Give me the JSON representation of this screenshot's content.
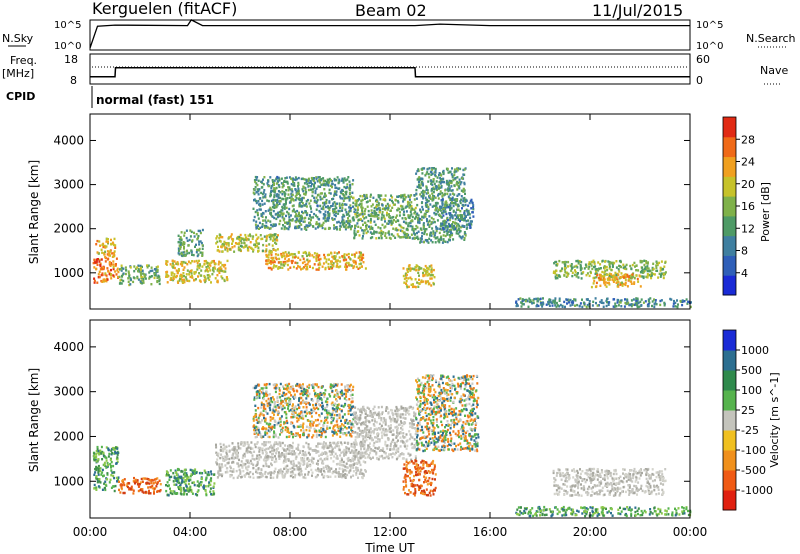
{
  "header": {
    "station": "Kerguelen (fitACF)",
    "beam": "Beam 02",
    "date": "11/Jul/2015"
  },
  "params": {
    "nsky_label": "N.Sky",
    "nsky_ticks": [
      "10^5",
      "10^0"
    ],
    "nsearch_label": "N.Search",
    "nsearch_ticks": [
      "10^5",
      "10^0"
    ],
    "freq_label": "Freq.",
    "freq_unit": "[MHz]",
    "freq_ticks": [
      "18",
      "8"
    ],
    "nave_label": "Nave",
    "nave_ticks": [
      "60",
      "0"
    ],
    "cpid_label": "CPID",
    "cpid_text": "normal (fast) 151"
  },
  "chart_data": [
    {
      "type": "line",
      "title": "",
      "series": [
        {
          "name": "N.Sky",
          "x_hours": [
            0,
            0.3,
            1,
            3.9,
            4.05,
            4.5,
            13,
            14,
            16,
            24
          ],
          "values_log": [
            0,
            4.2,
            4.4,
            4.3,
            5.4,
            4.3,
            4.3,
            4.6,
            4.3,
            4.3
          ]
        },
        {
          "name": "Freq.",
          "x_hours": [
            0,
            1,
            1.02,
            13,
            13.02,
            24
          ],
          "values": [
            10,
            10,
            13.5,
            13.5,
            10,
            10
          ]
        },
        {
          "name": "Nave",
          "x_hours": [
            0,
            24
          ],
          "values": [
            20,
            20
          ]
        }
      ]
    },
    {
      "type": "heatmap",
      "title": "Power",
      "xlabel": "Time UT",
      "ylabel": "Slant Range [km]",
      "colorbar_label": "Power [dB]",
      "colorbar_ticks": [
        "4",
        "8",
        "12",
        "16",
        "20",
        "24",
        "28"
      ],
      "colorbar_range": [
        0,
        32
      ],
      "x_ticks": [
        "00:00",
        "04:00",
        "08:00",
        "12:00",
        "16:00",
        "20:00",
        "00:00"
      ],
      "y_ticks": [
        "1000",
        "2000",
        "3000",
        "4000"
      ],
      "xlim_hours": [
        0,
        24
      ],
      "ylim_km": [
        180,
        4600
      ],
      "regions": [
        {
          "t0": 0.1,
          "t1": 1.1,
          "r0": 800,
          "r1": 1400,
          "v": 26
        },
        {
          "t0": 0.2,
          "t1": 1.0,
          "r0": 1400,
          "r1": 1800,
          "v": 22
        },
        {
          "t0": 1.1,
          "t1": 2.8,
          "r0": 750,
          "r1": 1200,
          "v": 14
        },
        {
          "t0": 3.0,
          "t1": 5.5,
          "r0": 800,
          "r1": 1300,
          "v": 20
        },
        {
          "t0": 3.5,
          "t1": 4.5,
          "r0": 1400,
          "r1": 2000,
          "v": 12
        },
        {
          "t0": 5.0,
          "t1": 7.5,
          "r0": 1500,
          "r1": 1900,
          "v": 18
        },
        {
          "t0": 7.0,
          "t1": 11.0,
          "r0": 1100,
          "r1": 1500,
          "v": 22
        },
        {
          "t0": 6.5,
          "t1": 10.5,
          "r0": 2000,
          "r1": 3200,
          "v": 12
        },
        {
          "t0": 10.5,
          "t1": 13.0,
          "r0": 1800,
          "r1": 2800,
          "v": 14
        },
        {
          "t0": 12.5,
          "t1": 13.8,
          "r0": 700,
          "r1": 1200,
          "v": 20
        },
        {
          "t0": 13.0,
          "t1": 15.0,
          "r0": 1700,
          "r1": 3400,
          "v": 12
        },
        {
          "t0": 14.0,
          "t1": 15.3,
          "r0": 2000,
          "r1": 2700,
          "v": 10
        },
        {
          "t0": 18.5,
          "t1": 23.0,
          "r0": 900,
          "r1": 1300,
          "v": 16
        },
        {
          "t0": 20.0,
          "t1": 22.0,
          "r0": 700,
          "r1": 1000,
          "v": 22
        },
        {
          "t0": 17.0,
          "t1": 24.0,
          "r0": 250,
          "r1": 450,
          "v": 10
        }
      ]
    },
    {
      "type": "heatmap",
      "title": "Velocity",
      "xlabel": "Time UT",
      "ylabel": "Slant Range [km]",
      "colorbar_label": "Velocity [m s^-1]",
      "colorbar_ticks": [
        "1000",
        "500",
        "100",
        "25",
        "-25",
        "-100",
        "-500",
        "-1000"
      ],
      "x_ticks": [
        "00:00",
        "04:00",
        "08:00",
        "12:00",
        "16:00",
        "20:00",
        "00:00"
      ],
      "y_ticks": [
        "1000",
        "2000",
        "3000",
        "4000"
      ],
      "xlim_hours": [
        0,
        24
      ],
      "ylim_km": [
        180,
        4600
      ],
      "regions": [
        {
          "t0": 0.1,
          "t1": 1.1,
          "r0": 800,
          "r1": 1800,
          "v": "green"
        },
        {
          "t0": 1.1,
          "t1": 2.8,
          "r0": 750,
          "r1": 1100,
          "v": "orange"
        },
        {
          "t0": 3.0,
          "t1": 5.0,
          "r0": 700,
          "r1": 1300,
          "v": "green"
        },
        {
          "t0": 5.0,
          "t1": 11.0,
          "r0": 1100,
          "r1": 1900,
          "v": "gray"
        },
        {
          "t0": 6.5,
          "t1": 10.5,
          "r0": 2000,
          "r1": 3200,
          "v": "mixed"
        },
        {
          "t0": 10.5,
          "t1": 13.0,
          "r0": 1500,
          "r1": 2700,
          "v": "gray"
        },
        {
          "t0": 12.5,
          "t1": 13.8,
          "r0": 700,
          "r1": 1500,
          "v": "orange"
        },
        {
          "t0": 13.0,
          "t1": 15.5,
          "r0": 1700,
          "r1": 3400,
          "v": "mixed"
        },
        {
          "t0": 18.5,
          "t1": 23.0,
          "r0": 700,
          "r1": 1300,
          "v": "gray"
        },
        {
          "t0": 17.0,
          "t1": 24.0,
          "r0": 250,
          "r1": 450,
          "v": "green"
        }
      ]
    }
  ]
}
